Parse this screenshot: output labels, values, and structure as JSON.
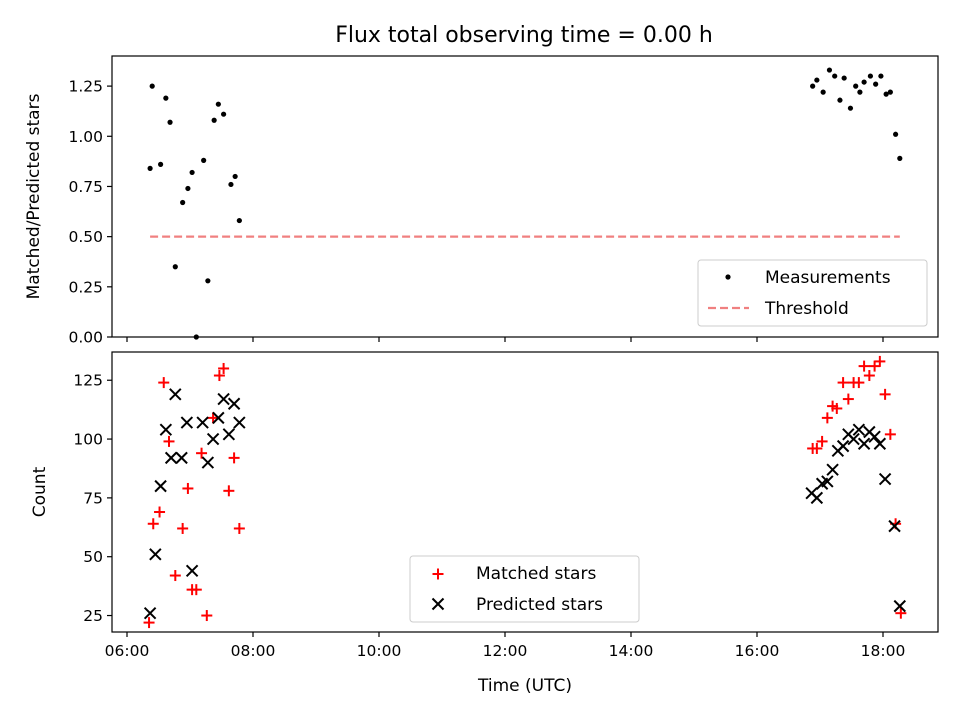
{
  "chart_data": [
    {
      "type": "scatter",
      "title": "Flux total observing time = 0.00 h",
      "xlabel": "",
      "ylabel": "Matched/Predicted stars",
      "xlim": [
        "06:00",
        "19:00"
      ],
      "ylim": [
        0,
        1.4
      ],
      "yticks": [
        "0.00",
        "0.25",
        "0.50",
        "0.75",
        "1.00",
        "1.25"
      ],
      "legend_position": "lower-right",
      "series": [
        {
          "name": "Measurements",
          "kind": "points",
          "color": "#000000",
          "points": [
            [
              "06:22",
              0.84
            ],
            [
              "06:24",
              1.25
            ],
            [
              "06:32",
              0.86
            ],
            [
              "06:37",
              1.19
            ],
            [
              "06:41",
              1.07
            ],
            [
              "06:46",
              0.35
            ],
            [
              "06:53",
              0.67
            ],
            [
              "06:58",
              0.74
            ],
            [
              "07:02",
              0.82
            ],
            [
              "07:06",
              0.0
            ],
            [
              "07:13",
              0.88
            ],
            [
              "07:17",
              0.28
            ],
            [
              "07:23",
              1.08
            ],
            [
              "07:27",
              1.16
            ],
            [
              "07:32",
              1.11
            ],
            [
              "07:39",
              0.76
            ],
            [
              "07:43",
              0.8
            ],
            [
              "07:47",
              0.58
            ],
            [
              "16:53",
              1.25
            ],
            [
              "16:57",
              1.28
            ],
            [
              "17:03",
              1.22
            ],
            [
              "17:09",
              1.33
            ],
            [
              "17:14",
              1.3
            ],
            [
              "17:19",
              1.18
            ],
            [
              "17:23",
              1.29
            ],
            [
              "17:29",
              1.14
            ],
            [
              "17:34",
              1.25
            ],
            [
              "17:38",
              1.22
            ],
            [
              "17:42",
              1.27
            ],
            [
              "17:48",
              1.3
            ],
            [
              "17:53",
              1.26
            ],
            [
              "17:58",
              1.3
            ],
            [
              "18:03",
              1.21
            ],
            [
              "18:07",
              1.22
            ],
            [
              "18:12",
              1.01
            ],
            [
              "18:16",
              0.89
            ]
          ]
        },
        {
          "name": "Threshold",
          "kind": "dashed-line",
          "color": "#f08080",
          "x": [
            "06:22",
            "18:16"
          ],
          "y": [
            0.5,
            0.5
          ]
        }
      ]
    },
    {
      "type": "scatter",
      "title": "",
      "xlabel": "Time (UTC)",
      "ylabel": "Count",
      "xlim": [
        "06:00",
        "19:00"
      ],
      "ylim": [
        18,
        137
      ],
      "xticks": [
        "06:00",
        "08:00",
        "10:00",
        "12:00",
        "14:00",
        "16:00",
        "18:00"
      ],
      "yticks": [
        "25",
        "50",
        "75",
        "100",
        "125"
      ],
      "legend_position": "lower-center",
      "series": [
        {
          "name": "Matched stars",
          "marker": "plus",
          "color": "#ff0000",
          "points": [
            [
              "06:21",
              22
            ],
            [
              "06:25",
              64
            ],
            [
              "06:31",
              69
            ],
            [
              "06:35",
              124
            ],
            [
              "06:40",
              99
            ],
            [
              "06:46",
              42
            ],
            [
              "06:53",
              62
            ],
            [
              "06:58",
              79
            ],
            [
              "07:02",
              36
            ],
            [
              "07:06",
              36
            ],
            [
              "07:11",
              94
            ],
            [
              "07:16",
              25
            ],
            [
              "07:22",
              109
            ],
            [
              "07:28",
              127
            ],
            [
              "07:32",
              130
            ],
            [
              "07:37",
              78
            ],
            [
              "07:42",
              92
            ],
            [
              "07:47",
              62
            ],
            [
              "16:53",
              96
            ],
            [
              "16:57",
              96
            ],
            [
              "17:02",
              99
            ],
            [
              "17:07",
              109
            ],
            [
              "17:12",
              114
            ],
            [
              "17:16",
              113
            ],
            [
              "17:22",
              124
            ],
            [
              "17:27",
              117
            ],
            [
              "17:32",
              124
            ],
            [
              "17:37",
              124
            ],
            [
              "17:42",
              131
            ],
            [
              "17:47",
              127
            ],
            [
              "17:52",
              131
            ],
            [
              "17:57",
              133
            ],
            [
              "18:02",
              119
            ],
            [
              "18:07",
              102
            ],
            [
              "18:12",
              64
            ],
            [
              "18:17",
              26
            ]
          ]
        },
        {
          "name": "Predicted stars",
          "marker": "x",
          "color": "#000000",
          "points": [
            [
              "06:22",
              26
            ],
            [
              "06:27",
              51
            ],
            [
              "06:32",
              80
            ],
            [
              "06:37",
              104
            ],
            [
              "06:42",
              92
            ],
            [
              "06:46",
              119
            ],
            [
              "06:52",
              92
            ],
            [
              "06:57",
              107
            ],
            [
              "07:02",
              44
            ],
            [
              "07:12",
              107
            ],
            [
              "07:17",
              90
            ],
            [
              "07:22",
              100
            ],
            [
              "07:27",
              109
            ],
            [
              "07:32",
              117
            ],
            [
              "07:37",
              102
            ],
            [
              "07:42",
              115
            ],
            [
              "07:47",
              107
            ],
            [
              "16:52",
              77
            ],
            [
              "16:57",
              75
            ],
            [
              "17:02",
              81
            ],
            [
              "17:07",
              82
            ],
            [
              "17:12",
              87
            ],
            [
              "17:17",
              95
            ],
            [
              "17:22",
              97
            ],
            [
              "17:27",
              102
            ],
            [
              "17:32",
              100
            ],
            [
              "17:37",
              104
            ],
            [
              "17:42",
              98
            ],
            [
              "17:47",
              103
            ],
            [
              "17:52",
              101
            ],
            [
              "17:57",
              98
            ],
            [
              "18:02",
              83
            ],
            [
              "18:11",
              63
            ],
            [
              "18:16",
              29
            ]
          ]
        }
      ]
    }
  ]
}
